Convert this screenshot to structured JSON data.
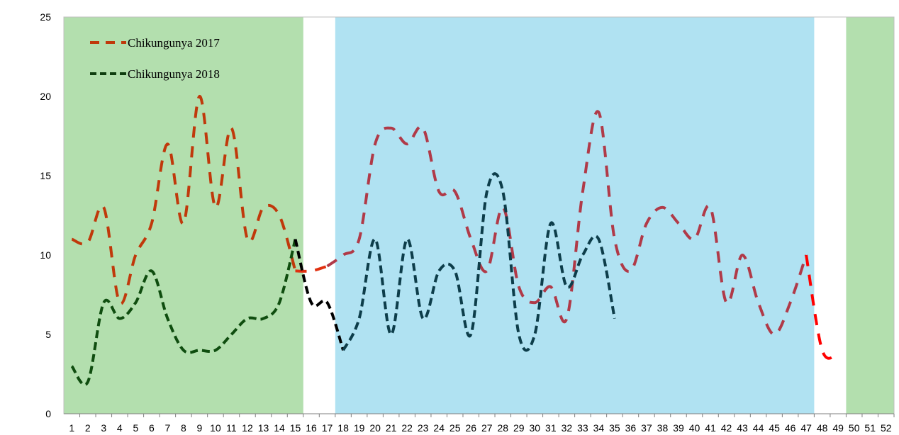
{
  "chart_data": {
    "type": "line",
    "x": [
      1,
      2,
      3,
      4,
      5,
      6,
      7,
      8,
      9,
      10,
      11,
      12,
      13,
      14,
      15,
      16,
      17,
      18,
      19,
      20,
      21,
      22,
      23,
      24,
      25,
      26,
      27,
      28,
      29,
      30,
      31,
      32,
      33,
      34,
      35,
      36,
      37,
      38,
      39,
      40,
      41,
      42,
      43,
      44,
      45,
      46,
      47,
      48,
      49,
      50,
      51,
      52
    ],
    "x_tick_labels": [
      "1",
      "2",
      "3",
      "4",
      "5",
      "6",
      "7",
      "8",
      "9",
      "10",
      "11",
      "12",
      "13",
      "14",
      "15",
      "16",
      "17",
      "18",
      "19",
      "20",
      "21",
      "22",
      "23",
      "24",
      "25",
      "26",
      "27",
      "28",
      "29",
      "30",
      "31",
      "32",
      "33",
      "34",
      "35",
      "36",
      "37",
      "38",
      "39",
      "40",
      "41",
      "42",
      "43",
      "44",
      "45",
      "46",
      "47",
      "48",
      "49",
      "50",
      "51",
      "52"
    ],
    "ylim": [
      0,
      25
    ],
    "y_ticks": [
      0,
      5,
      10,
      15,
      20,
      25
    ],
    "grid": false,
    "legend_position": "top-left",
    "series": [
      {
        "name": "Chikungunya 2017",
        "style": "dashed",
        "segments": [
          {
            "color": "#c0390b",
            "x": [
              1,
              2,
              3,
              4,
              5,
              6,
              7,
              8,
              9,
              10,
              11,
              12,
              13,
              14,
              15
            ],
            "y": [
              11,
              10.8,
              13,
              7,
              10,
              12,
              17,
              12,
              20,
              13,
              18,
              11,
              13,
              12.5,
              9
            ]
          },
          {
            "color": "#e03010",
            "x": [
              15,
              16,
              17
            ],
            "y": [
              9,
              9,
              9.3
            ]
          },
          {
            "color": "#b03a48",
            "x": [
              17,
              18,
              19,
              20,
              21,
              22,
              23,
              24,
              25,
              26,
              27,
              28,
              29,
              30,
              31,
              32,
              33,
              34,
              35,
              36,
              37,
              38,
              39,
              40,
              41,
              42,
              43,
              44,
              45,
              46,
              47
            ],
            "y": [
              9.3,
              10,
              11,
              17,
              18,
              17,
              18,
              14,
              14,
              11,
              9,
              13,
              8,
              7,
              8,
              6,
              14,
              19,
              11,
              9,
              12,
              13,
              12,
              11,
              13,
              7,
              10,
              7,
              5,
              7,
              10
            ]
          },
          {
            "color": "#ff0000",
            "x": [
              47,
              48,
              49
            ],
            "y": [
              10,
              4,
              3.8
            ]
          }
        ]
      },
      {
        "name": "Chikungunya 2018",
        "style": "dashed",
        "segments": [
          {
            "color": "#0f4d0f",
            "x": [
              1,
              2,
              3,
              4,
              5,
              6,
              7,
              8,
              9,
              10,
              11,
              12,
              13,
              14,
              15
            ],
            "y": [
              3,
              2,
              7,
              6,
              7,
              9,
              6,
              4,
              4,
              4,
              5,
              6,
              6,
              7,
              11
            ]
          },
          {
            "color": "#000000",
            "x": [
              15,
              16,
              17,
              18
            ],
            "y": [
              11,
              7,
              7,
              4
            ]
          },
          {
            "color": "#0d3d4a",
            "x": [
              18,
              19,
              20,
              21,
              22,
              23,
              24,
              25,
              26,
              27,
              28,
              29,
              30,
              31,
              32,
              33,
              34,
              35
            ],
            "y": [
              4,
              6,
              11,
              5,
              11,
              6,
              9,
              9,
              5,
              14,
              14,
              5,
              5,
              12,
              8,
              10,
              11,
              6
            ]
          }
        ]
      }
    ],
    "background_bands": [
      {
        "x_from": 0.5,
        "x_to": 15.5,
        "color": "#b3dfae"
      },
      {
        "x_from": 17.5,
        "x_to": 47.5,
        "color": "#b0e2f2"
      },
      {
        "x_from": 49.5,
        "x_to": 52.5,
        "color": "#b3dfae"
      }
    ]
  },
  "legend": {
    "items": [
      {
        "label": "Chikungunya 2017",
        "color": "#c0390b"
      },
      {
        "label": "Chikungunya 2018",
        "color": "#0f3d0f"
      }
    ]
  }
}
